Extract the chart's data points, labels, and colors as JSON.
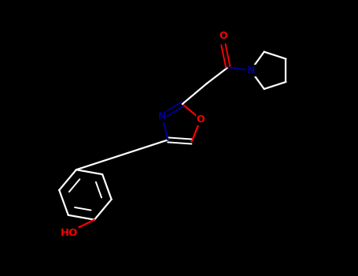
{
  "background_color": "#000000",
  "bond_color": "#ffffff",
  "atom_colors": {
    "O": "#ff0000",
    "N": "#00008b",
    "C": "#ffffff"
  },
  "fig_width": 4.55,
  "fig_height": 3.5,
  "dpi": 100
}
